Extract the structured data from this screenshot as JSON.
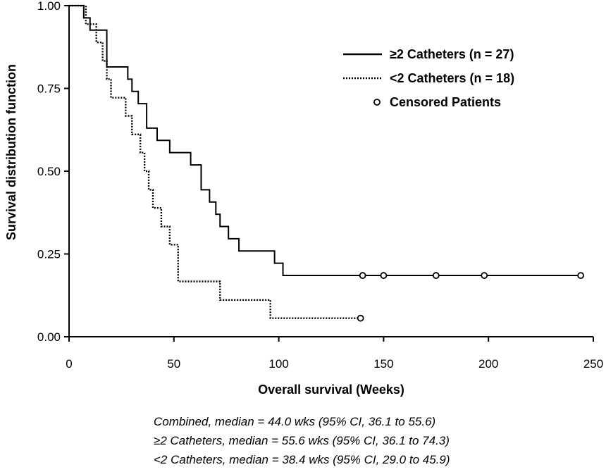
{
  "chart_data": {
    "type": "line",
    "subtype": "kaplan-meier",
    "title": "",
    "xlabel": "Overall survival (Weeks)",
    "ylabel": "Survival distribution function",
    "xlim": [
      0,
      250
    ],
    "ylim": [
      0,
      1
    ],
    "xticks": [
      0,
      50,
      100,
      150,
      200,
      250
    ],
    "xtick_labels": [
      "0",
      "50",
      "100",
      "150",
      "200",
      "250"
    ],
    "yticks": [
      0,
      0.25,
      0.5,
      0.75,
      1
    ],
    "ytick_labels": [
      "0.00",
      "0.25",
      "0.50",
      "0.75",
      "1.00"
    ],
    "grid": false,
    "legend_position": "top-right",
    "series": [
      {
        "name": "≥2 Catheters (n = 27)",
        "style": "solid",
        "color": "#000000",
        "x": [
          0,
          7,
          10,
          18,
          28,
          30,
          33,
          37,
          42,
          48,
          52,
          58,
          63,
          67,
          70,
          72,
          76,
          81,
          98,
          102,
          245
        ],
        "y": [
          1.0,
          0.963,
          0.926,
          0.815,
          0.778,
          0.741,
          0.704,
          0.63,
          0.593,
          0.556,
          0.556,
          0.519,
          0.444,
          0.407,
          0.37,
          0.333,
          0.296,
          0.259,
          0.222,
          0.185,
          0.185
        ],
        "censored_x": [
          140,
          150,
          175,
          198,
          244
        ],
        "censored_y": [
          0.185,
          0.185,
          0.185,
          0.185,
          0.185
        ]
      },
      {
        "name": "<2 Catheters (n = 18)",
        "style": "dotted",
        "color": "#000000",
        "x": [
          0,
          8,
          13,
          16,
          18,
          20,
          27,
          30,
          34,
          36,
          38,
          40,
          44,
          48,
          52,
          72,
          82,
          96,
          140
        ],
        "y": [
          1.0,
          0.944,
          0.889,
          0.833,
          0.778,
          0.722,
          0.667,
          0.611,
          0.556,
          0.5,
          0.444,
          0.389,
          0.333,
          0.278,
          0.167,
          0.111,
          0.111,
          0.056,
          0.056
        ],
        "censored_x": [
          139
        ],
        "censored_y": [
          0.056
        ]
      }
    ],
    "legend": {
      "solid_label": "≥2 Catheters (n = 27)",
      "dotted_label": "<2 Catheters (n = 18)",
      "censored_label": "Censored Patients"
    }
  },
  "caption": {
    "line1": "Combined, median = 44.0 wks (95% CI, 36.1 to 55.6)",
    "line2": "≥2 Catheters, median = 55.6 wks (95% CI, 36.1 to 74.3)",
    "line3": "<2 Catheters, median = 38.4 wks (95% CI, 29.0 to 45.9)"
  }
}
